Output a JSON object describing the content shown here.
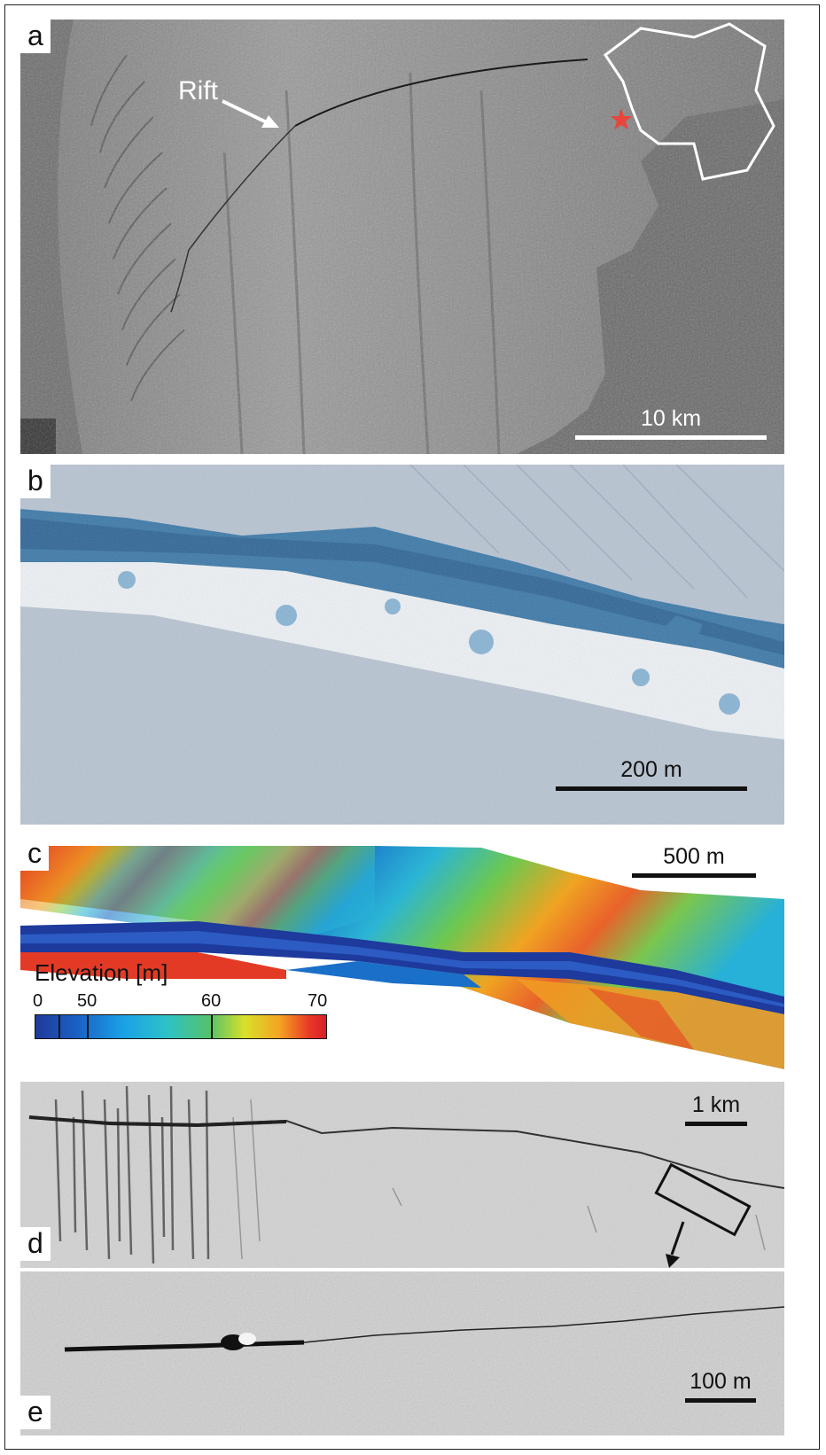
{
  "panels": {
    "a": {
      "label": "a",
      "annotation": "Rift",
      "scale": "10 km",
      "inset_marker_color": "#e8453c"
    },
    "b": {
      "label": "b",
      "scale": "200 m"
    },
    "c": {
      "label": "c",
      "scale": "500 m",
      "colorbar": {
        "title": "Elevation [m]",
        "ticks": [
          "0",
          "50",
          "60",
          "70"
        ],
        "range": [
          0,
          70
        ]
      }
    },
    "d": {
      "label": "d",
      "scale": "1 km"
    },
    "e": {
      "label": "e",
      "scale": "100 m"
    }
  }
}
